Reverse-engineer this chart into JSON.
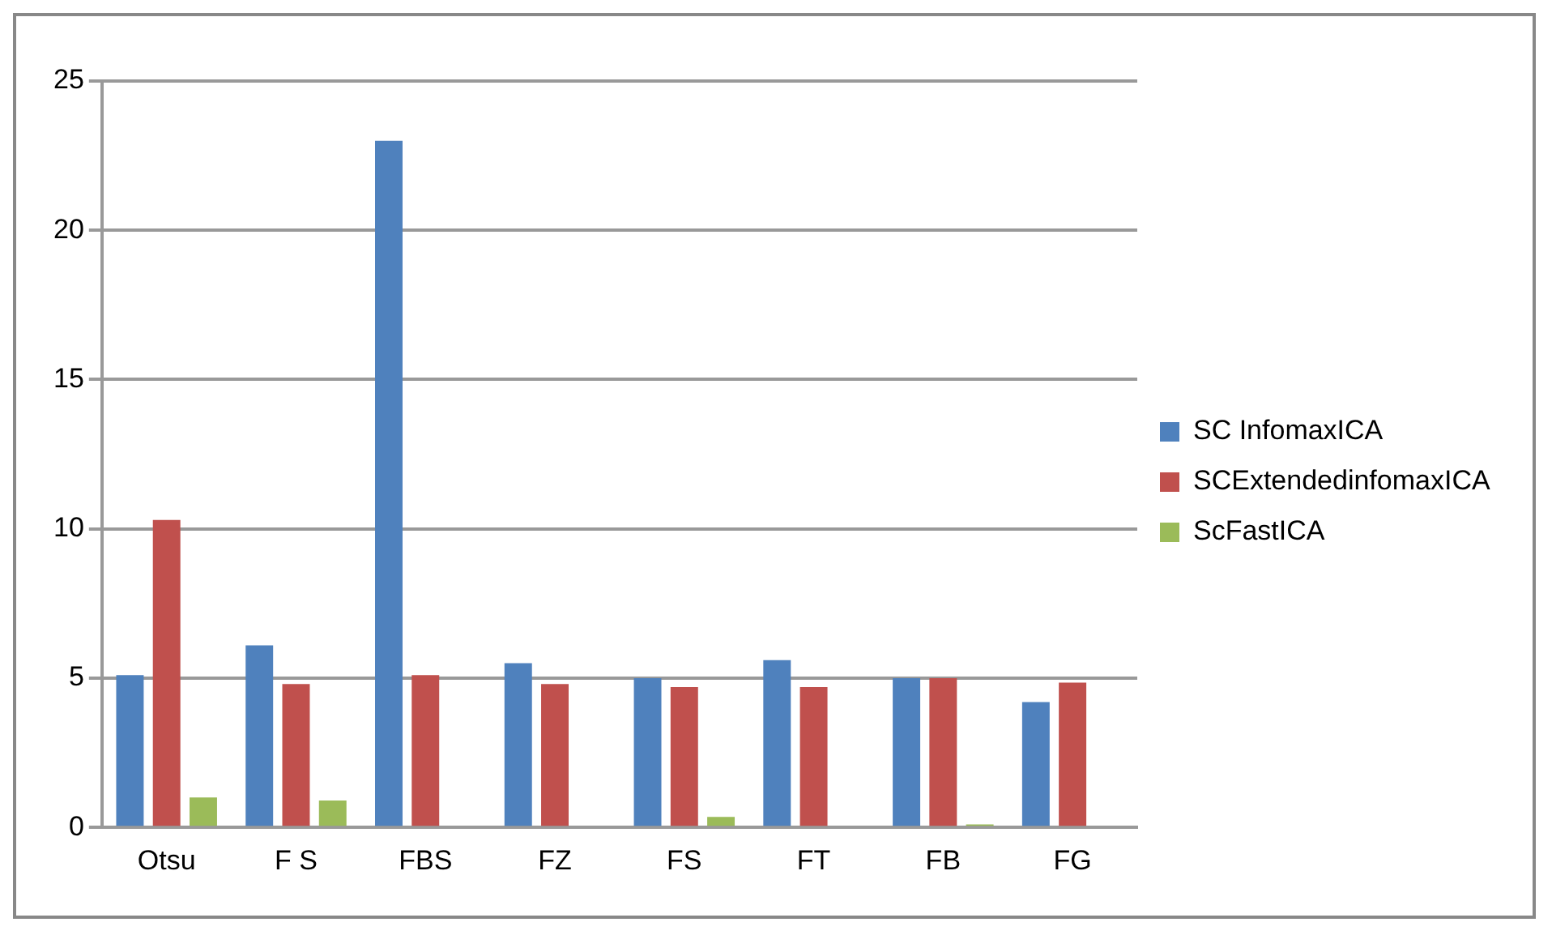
{
  "chart_data": {
    "type": "bar",
    "categories": [
      "Otsu",
      "F S",
      "FBS",
      "FZ",
      "FS",
      "FT",
      "FB",
      "FG"
    ],
    "series": [
      {
        "name": "SC InfomaxICA",
        "color": "#4f81bd",
        "values": [
          5.1,
          6.1,
          23,
          5.5,
          5.0,
          5.6,
          5.0,
          4.2
        ]
      },
      {
        "name": "SCExtendedinfomaxICA",
        "color": "#c0504d",
        "values": [
          10.3,
          4.8,
          5.1,
          4.8,
          4.7,
          4.7,
          5.0,
          4.85
        ]
      },
      {
        "name": "ScFastICA",
        "color": "#9bbb59",
        "values": [
          1.0,
          0.9,
          0.05,
          0.05,
          0.35,
          0.05,
          0.1,
          0.05
        ]
      }
    ],
    "ylim": [
      0,
      25
    ],
    "yticks": [
      0,
      5,
      10,
      15,
      20,
      25
    ],
    "grid": "y",
    "legend": "right"
  }
}
